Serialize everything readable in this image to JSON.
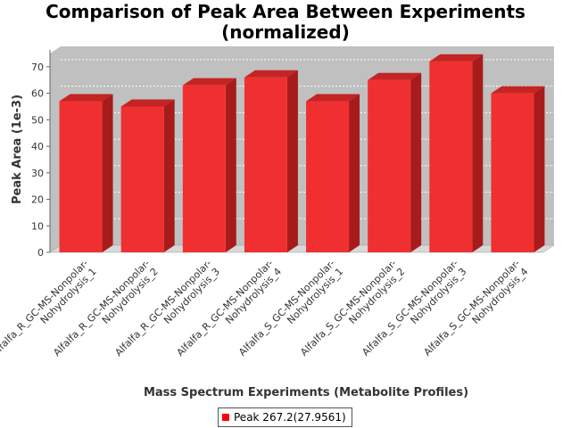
{
  "chart_data": {
    "type": "bar",
    "title": [
      "Comparison of Peak Area Between Experiments",
      "(normalized)"
    ],
    "xlabel": "Mass Spectrum Experiments (Metabolite Profiles)",
    "ylabel": "Peak Area (1e-3)",
    "ylim": [
      0,
      75
    ],
    "yticks": [
      0,
      10,
      20,
      30,
      40,
      50,
      60,
      70
    ],
    "grid": true,
    "legend_position": "bottom",
    "categories": [
      [
        "Alfalfa_R_GC-MS-Nonpolar-",
        "Nohydrolysis_1"
      ],
      [
        "Alfalfa_R_GC-MS-Nonpolar-",
        "Nohydrolysis_2"
      ],
      [
        "Alfalfa_R_GC-MS-Nonpolar-",
        "Nohydrolysis_3"
      ],
      [
        "Alfalfa_R_GC-MS-Nonpolar-",
        "Nohydrolysis_4"
      ],
      [
        "Alfalfa_S_GC-MS-Nonpolar-",
        "Nohydrolysis_1"
      ],
      [
        "Alfalfa_S_GC-MS-Nonpolar-",
        "Nohydrolysis_2"
      ],
      [
        "Alfalfa_S_GC-MS-Nonpolar-",
        "Nohydrolysis_3"
      ],
      [
        "Alfalfa_S_GC-MS-Nonpolar-",
        "Nohydrolysis_4"
      ]
    ],
    "series": [
      {
        "name": "Peak 267.2(27.9561)",
        "color": "#ff0000",
        "values": [
          57,
          55,
          63,
          66,
          57,
          65,
          72,
          60
        ]
      }
    ]
  }
}
